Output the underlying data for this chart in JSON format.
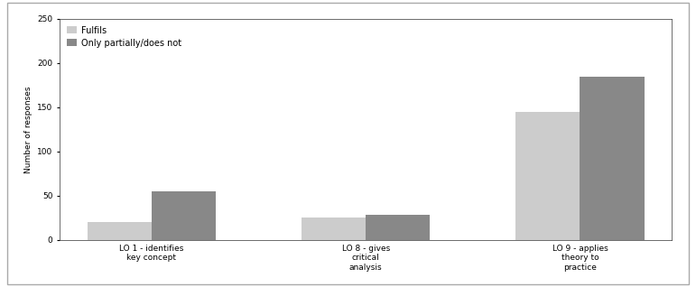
{
  "categories": [
    "LO 1 - identifies\nkey concept",
    "LO 8 - gives\ncritical\nanalysis",
    "LO 9 - applies\ntheory to\npractice"
  ],
  "series": {
    "Fulfils": [
      20,
      25,
      145
    ],
    "Only partially/does not": [
      55,
      28,
      185
    ]
  },
  "bar_colors": {
    "Fulfils": "#cccccc",
    "Only partially/does not": "#888888"
  },
  "ylabel": "Number of responses",
  "ylim": [
    0,
    250
  ],
  "yticks": [
    0,
    50,
    100,
    150,
    200,
    250
  ],
  "legend_label_1": "Fulfils",
  "legend_label_2": "Only partially/does not",
  "background_color": "#ffffff",
  "bar_width": 0.3,
  "figure_width": 7.71,
  "figure_height": 3.18,
  "dpi": 100,
  "border_color": "#aaaaaa",
  "spine_color": "#333333",
  "fontsize_ticks": 6.5,
  "fontsize_ylabel": 6.5,
  "fontsize_legend": 7
}
